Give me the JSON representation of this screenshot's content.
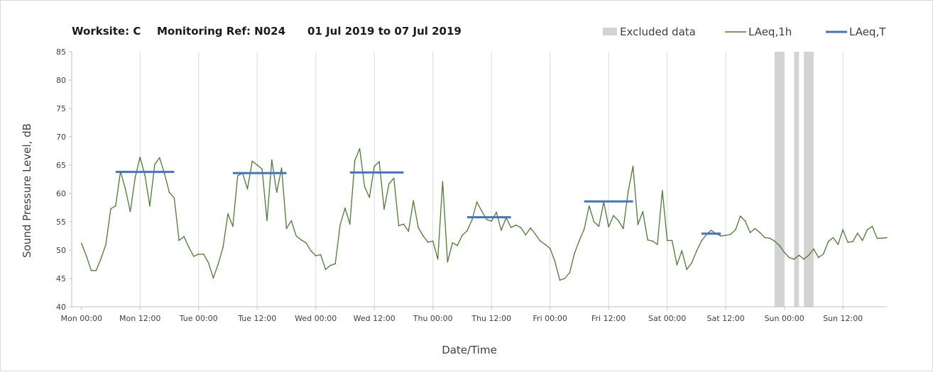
{
  "chart_data": {
    "type": "line",
    "title": {
      "worksite": "Worksite: C",
      "monitoring_ref": "Monitoring Ref: N024",
      "date_range": "01 Jul 2019 to 07 Jul 2019"
    },
    "xlabel": "Date/Time",
    "ylabel": "Sound Pressure Level, dB",
    "ylim": [
      40,
      85
    ],
    "yticks": [
      40,
      45,
      50,
      55,
      60,
      65,
      70,
      75,
      80,
      85
    ],
    "x_unit": "hours from Mon 00:00",
    "xlim": [
      -2,
      165
    ],
    "xticks": [
      {
        "hours": 0,
        "label": "Mon 00:00"
      },
      {
        "hours": 12,
        "label": "Mon 12:00"
      },
      {
        "hours": 24,
        "label": "Tue 00:00"
      },
      {
        "hours": 36,
        "label": "Tue 12:00"
      },
      {
        "hours": 48,
        "label": "Wed 00:00"
      },
      {
        "hours": 60,
        "label": "Wed 12:00"
      },
      {
        "hours": 72,
        "label": "Thu 00:00"
      },
      {
        "hours": 84,
        "label": "Thu 12:00"
      },
      {
        "hours": 96,
        "label": "Fri 00:00"
      },
      {
        "hours": 108,
        "label": "Fri 12:00"
      },
      {
        "hours": 120,
        "label": "Sat 00:00"
      },
      {
        "hours": 132,
        "label": "Sat 12:00"
      },
      {
        "hours": 144,
        "label": "Sun 00:00"
      },
      {
        "hours": 156,
        "label": "Sun 12:00"
      }
    ],
    "grid": "vertical",
    "legend_position": "top-right",
    "legend": [
      {
        "label": "Excluded data",
        "kind": "band",
        "color": "#d3d3d3"
      },
      {
        "label": "LAeq,1h",
        "kind": "line",
        "color": "#4e7a35"
      },
      {
        "label": "LAeq,T",
        "kind": "line",
        "color": "#4472c4"
      }
    ],
    "excluded_data": [
      {
        "start": 142,
        "end": 144
      },
      {
        "start": 146,
        "end": 147
      },
      {
        "start": 148,
        "end": 150
      }
    ],
    "series": [
      {
        "name": "LAeq,1h",
        "color": "#4e7a35",
        "values": [
          [
            0,
            51.2
          ],
          [
            1,
            49
          ],
          [
            2,
            46.4
          ],
          [
            3,
            46.4
          ],
          [
            4,
            48.5
          ],
          [
            5,
            51
          ],
          [
            6,
            57.3
          ],
          [
            7,
            57.8
          ],
          [
            8,
            63.9
          ],
          [
            9,
            60.8
          ],
          [
            10,
            56.8
          ],
          [
            11,
            62.8
          ],
          [
            12,
            66.4
          ],
          [
            13,
            63.2
          ],
          [
            14,
            57.8
          ],
          [
            15,
            65.1
          ],
          [
            16,
            66.3
          ],
          [
            17,
            63.5
          ],
          [
            18,
            60.2
          ],
          [
            19,
            59.2
          ],
          [
            20,
            51.7
          ],
          [
            21,
            52.4
          ],
          [
            22,
            50.5
          ],
          [
            23,
            48.9
          ],
          [
            24,
            49.3
          ],
          [
            25,
            49.3
          ],
          [
            26,
            47.8
          ],
          [
            27,
            45.1
          ],
          [
            28,
            47.5
          ],
          [
            29,
            50.5
          ],
          [
            30,
            56.4
          ],
          [
            31,
            54.2
          ],
          [
            32,
            63.1
          ],
          [
            33,
            63.6
          ],
          [
            34,
            60.8
          ],
          [
            35,
            65.7
          ],
          [
            36,
            65
          ],
          [
            37,
            64.3
          ],
          [
            38,
            55.2
          ],
          [
            39,
            65.9
          ],
          [
            40,
            60.2
          ],
          [
            41,
            64.5
          ],
          [
            42,
            53.8
          ],
          [
            43,
            55.2
          ],
          [
            44,
            52.5
          ],
          [
            45,
            51.8
          ],
          [
            46,
            51.3
          ],
          [
            47,
            49.9
          ],
          [
            48,
            49
          ],
          [
            49,
            49.2
          ],
          [
            50,
            46.6
          ],
          [
            51,
            47.3
          ],
          [
            52,
            47.6
          ],
          [
            53,
            54.5
          ],
          [
            54,
            57.4
          ],
          [
            55,
            54.6
          ],
          [
            56,
            65.8
          ],
          [
            57,
            67.9
          ],
          [
            58,
            61.2
          ],
          [
            59,
            59.3
          ],
          [
            60,
            64.8
          ],
          [
            61,
            65.6
          ],
          [
            62,
            57.2
          ],
          [
            63,
            61.7
          ],
          [
            64,
            62.7
          ],
          [
            65,
            54.3
          ],
          [
            66,
            54.6
          ],
          [
            67,
            53.3
          ],
          [
            68,
            58.7
          ],
          [
            69,
            54
          ],
          [
            70,
            52.5
          ],
          [
            71,
            51.4
          ],
          [
            72,
            51.6
          ],
          [
            73,
            48.4
          ],
          [
            74,
            62.1
          ],
          [
            75,
            47.9
          ],
          [
            76,
            51.3
          ],
          [
            77,
            50.8
          ],
          [
            78,
            52.6
          ],
          [
            79,
            53.4
          ],
          [
            80,
            55.3
          ],
          [
            81,
            58.5
          ],
          [
            82,
            56.9
          ],
          [
            83,
            55.4
          ],
          [
            84,
            55.1
          ],
          [
            85,
            56.7
          ],
          [
            86,
            53.5
          ],
          [
            87,
            55.7
          ],
          [
            88,
            54
          ],
          [
            89,
            54.4
          ],
          [
            90,
            54
          ],
          [
            91,
            52.7
          ],
          [
            92,
            53.9
          ],
          [
            93,
            52.8
          ],
          [
            94,
            51.6
          ],
          [
            95,
            51
          ],
          [
            96,
            50.3
          ],
          [
            97,
            48
          ],
          [
            98,
            44.7
          ],
          [
            99,
            45
          ],
          [
            100,
            46
          ],
          [
            101,
            49.4
          ],
          [
            102,
            51.7
          ],
          [
            103,
            53.7
          ],
          [
            104,
            57.8
          ],
          [
            105,
            55
          ],
          [
            106,
            54.2
          ],
          [
            107,
            58.5
          ],
          [
            108,
            54.1
          ],
          [
            109,
            56.1
          ],
          [
            110,
            55.2
          ],
          [
            111,
            53.8
          ],
          [
            112,
            60.3
          ],
          [
            113,
            64.8
          ],
          [
            114,
            54.5
          ],
          [
            115,
            56.8
          ],
          [
            116,
            51.8
          ],
          [
            117,
            51.6
          ],
          [
            118,
            51
          ],
          [
            119,
            60.5
          ],
          [
            120,
            51.7
          ],
          [
            121,
            51.7
          ],
          [
            122,
            47.4
          ],
          [
            123,
            49.9
          ],
          [
            124,
            46.6
          ],
          [
            125,
            47.7
          ],
          [
            126,
            49.8
          ],
          [
            127,
            51.6
          ],
          [
            128,
            52.7
          ],
          [
            129,
            53.5
          ],
          [
            130,
            52.9
          ],
          [
            131,
            52.5
          ],
          [
            132,
            52.6
          ],
          [
            133,
            52.8
          ],
          [
            134,
            53.6
          ],
          [
            135,
            56
          ],
          [
            136,
            55.1
          ],
          [
            137,
            53.1
          ],
          [
            138,
            53.8
          ],
          [
            139,
            53.1
          ],
          [
            140,
            52.2
          ],
          [
            141,
            52.1
          ],
          [
            142,
            51.6
          ],
          [
            143,
            50.8
          ],
          [
            144,
            49.6
          ],
          [
            145,
            48.7
          ],
          [
            146,
            48.4
          ],
          [
            147,
            49.1
          ],
          [
            148,
            48.4
          ],
          [
            149,
            49.1
          ],
          [
            150,
            50.2
          ],
          [
            151,
            48.7
          ],
          [
            152,
            49.3
          ],
          [
            153,
            51.5
          ],
          [
            154,
            52.2
          ],
          [
            155,
            51
          ],
          [
            156,
            53.6
          ],
          [
            157,
            51.4
          ],
          [
            158,
            51.5
          ],
          [
            159,
            53
          ],
          [
            160,
            51.7
          ],
          [
            161,
            53.6
          ],
          [
            162,
            54.2
          ],
          [
            163,
            52.1
          ],
          [
            164,
            52.1
          ],
          [
            165,
            52.2
          ]
        ]
      },
      {
        "name": "LAeq,T",
        "color": "#4472c4",
        "segments": [
          {
            "start": 7,
            "end": 19,
            "value": 63.8
          },
          {
            "start": 31,
            "end": 42,
            "value": 63.6
          },
          {
            "start": 55,
            "end": 66,
            "value": 63.7
          },
          {
            "start": 79,
            "end": 88,
            "value": 55.8
          },
          {
            "start": 103,
            "end": 113,
            "value": 58.6
          },
          {
            "start": 127,
            "end": 131,
            "value": 52.9
          }
        ]
      }
    ]
  }
}
